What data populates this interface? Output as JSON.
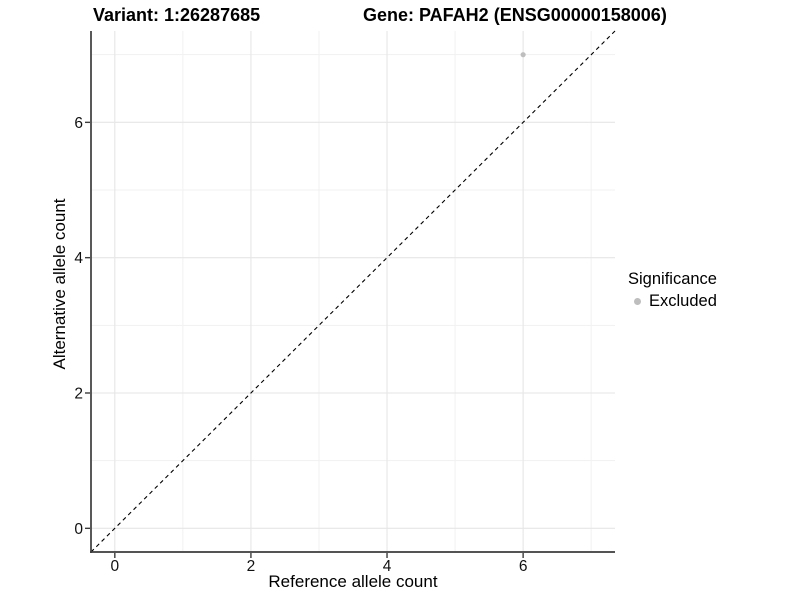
{
  "header": {
    "variant_title": "Variant: 1:26287685",
    "gene_title": "Gene: PAFAH2 (ENSG00000158006)"
  },
  "chart_data": {
    "type": "scatter",
    "title": "Variant: 1:26287685   Gene: PAFAH2 (ENSG00000158006)",
    "xlabel": "Reference allele count",
    "ylabel": "Alternative allele count",
    "xlim": [
      -0.35,
      7.35
    ],
    "ylim": [
      -0.35,
      7.35
    ],
    "x_ticks": {
      "major": [
        0,
        2,
        4,
        6
      ],
      "minor": [
        1,
        3,
        5,
        7
      ]
    },
    "y_ticks": {
      "major": [
        0,
        2,
        4,
        6
      ],
      "minor": [
        1,
        3,
        5,
        7
      ]
    },
    "grid": "major and minor gridlines, light gray on white panel",
    "series": [
      {
        "name": "Excluded",
        "color": "#bebebe",
        "marker": "circle",
        "points": [
          {
            "x": 6,
            "y": 7
          }
        ]
      }
    ],
    "reference_line": {
      "kind": "identity y = x",
      "slope": 1,
      "intercept": 0,
      "style": "dashed",
      "color": "#000000"
    },
    "legend": {
      "title": "Significance",
      "position": "right",
      "entries": [
        {
          "label": "Excluded",
          "color": "#bebebe"
        }
      ]
    }
  },
  "palette": {
    "excluded_gray": "#bebebe",
    "grid_major": "#e6e6e6",
    "grid_minor": "#f1f1f1",
    "axis_line": "#3c3c3c",
    "tick_text": "#111111",
    "background": "#ffffff"
  }
}
